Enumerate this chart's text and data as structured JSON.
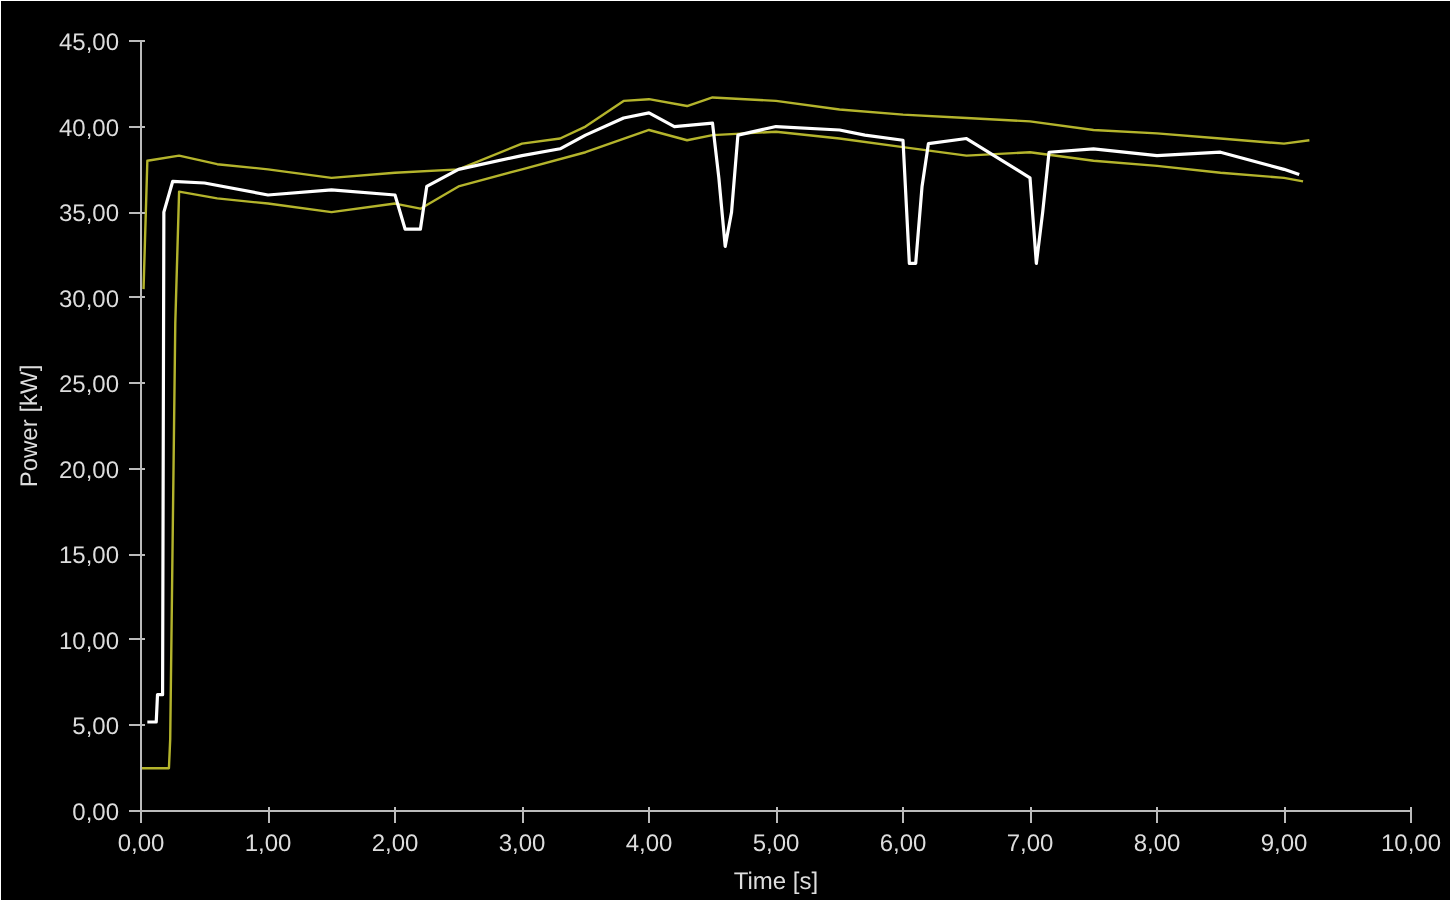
{
  "chart_data": {
    "type": "line",
    "xlabel": "Time [s]",
    "ylabel": "Power [kW]",
    "grid": false,
    "marker": "none",
    "line_style": "solid",
    "xlim": [
      0,
      10
    ],
    "ylim": [
      0,
      45
    ],
    "xticks": [
      {
        "value": 0,
        "label": "0,00"
      },
      {
        "value": 1,
        "label": "1,00"
      },
      {
        "value": 2,
        "label": "2,00"
      },
      {
        "value": 3,
        "label": "3,00"
      },
      {
        "value": 4,
        "label": "4,00"
      },
      {
        "value": 5,
        "label": "5,00"
      },
      {
        "value": 6,
        "label": "6,00"
      },
      {
        "value": 7,
        "label": "7,00"
      },
      {
        "value": 8,
        "label": "8,00"
      },
      {
        "value": 9,
        "label": "9,00"
      },
      {
        "value": 10,
        "label": "10,00"
      }
    ],
    "yticks": [
      {
        "value": 0,
        "label": "0,00"
      },
      {
        "value": 5,
        "label": "5,00"
      },
      {
        "value": 10,
        "label": "10,00"
      },
      {
        "value": 15,
        "label": "15,00"
      },
      {
        "value": 20,
        "label": "20,00"
      },
      {
        "value": 25,
        "label": "25,00"
      },
      {
        "value": 30,
        "label": "30,00"
      },
      {
        "value": 35,
        "label": "35,00"
      },
      {
        "value": 40,
        "label": "40,00"
      },
      {
        "value": 45,
        "label": "45,00"
      }
    ],
    "series": [
      {
        "color": "#b4b42c",
        "x": [
          0.02,
          0.05,
          0.3,
          0.6,
          1.0,
          1.5,
          2.0,
          2.5,
          3.0,
          3.3,
          3.5,
          3.8,
          4.0,
          4.3,
          4.5,
          5.0,
          5.5,
          6.0,
          6.5,
          7.0,
          7.5,
          8.0,
          8.5,
          9.0,
          9.2
        ],
        "values": [
          30.5,
          38,
          38.3,
          37.8,
          37.5,
          37,
          37.3,
          37.5,
          39,
          39.3,
          40,
          41.5,
          41.6,
          41.2,
          41.7,
          41.5,
          41,
          40.7,
          40.5,
          40.3,
          39.8,
          39.6,
          39.3,
          39,
          39.2
        ]
      },
      {
        "color": "#b4b42c",
        "x": [
          0,
          0.22,
          0.23,
          0.27,
          0.3,
          0.6,
          1.0,
          1.5,
          2.0,
          2.2,
          2.5,
          3.0,
          3.5,
          4.0,
          4.3,
          4.5,
          5.0,
          5.5,
          6.0,
          6.5,
          7.0,
          7.5,
          8.0,
          8.5,
          9.0,
          9.15
        ],
        "values": [
          2.5,
          2.5,
          4.2,
          28.5,
          36.2,
          35.8,
          35.5,
          35,
          35.5,
          35.2,
          36.5,
          37.5,
          38.5,
          39.8,
          39.2,
          39.5,
          39.7,
          39.3,
          38.8,
          38.3,
          38.5,
          38,
          37.7,
          37.3,
          37,
          36.8
        ]
      },
      {
        "color": "#ffffff",
        "x": [
          0.05,
          0.12,
          0.13,
          0.17,
          0.18,
          0.25,
          0.5,
          1.0,
          1.5,
          2.0,
          2.08,
          2.12,
          2.2,
          2.25,
          2.5,
          3.0,
          3.3,
          3.5,
          3.8,
          4.0,
          4.2,
          4.5,
          4.55,
          4.6,
          4.65,
          4.7,
          5.0,
          5.5,
          5.7,
          6.0,
          6.05,
          6.1,
          6.15,
          6.2,
          6.5,
          7.0,
          7.05,
          7.1,
          7.15,
          7.5,
          8.0,
          8.5,
          9.0,
          9.12
        ],
        "values": [
          5.2,
          5.2,
          6.8,
          6.8,
          35,
          36.8,
          36.7,
          36,
          36.3,
          36,
          34,
          34,
          34,
          36.5,
          37.5,
          38.3,
          38.7,
          39.5,
          40.5,
          40.8,
          40,
          40.2,
          37,
          33,
          35,
          39.5,
          40,
          39.8,
          39.5,
          39.2,
          32,
          32,
          36.5,
          39,
          39.3,
          37,
          32,
          35,
          38.5,
          38.7,
          38.3,
          38.5,
          37.5,
          37.2
        ]
      }
    ]
  }
}
